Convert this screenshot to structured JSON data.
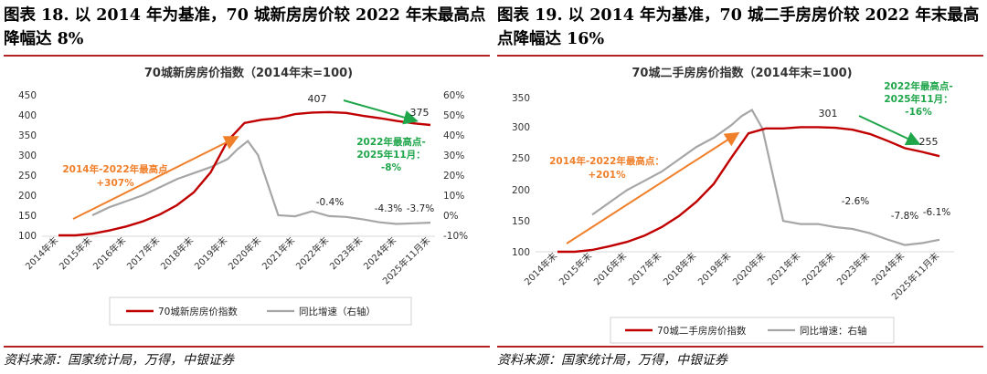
{
  "colors": {
    "accent_red": "#b22222",
    "index_line": "#c00000",
    "yoy_line": "#a6a6a6",
    "orange_note": "#f07f2a",
    "green_note": "#1fa64a"
  },
  "chart_data": [
    {
      "type": "line",
      "figure_title": "图表 18. 以 2014 年为基准，70 城新房房价较 2022 年末最高点降幅达 8%",
      "title": "70城新房房价指数（2014年末=100)",
      "categories": [
        "2014年末",
        "2015年末",
        "2016年末",
        "2017年末",
        "2018年末",
        "2019年末",
        "2020年末",
        "2021年末",
        "2022年末",
        "2023年末",
        "2024年末",
        "2025年11月末"
      ],
      "series": [
        {
          "name": "70城新房房价指数",
          "axis": "left",
          "color": "#c00000",
          "x": [
            0,
            0.5,
            1,
            1.5,
            2,
            2.5,
            3,
            3.5,
            4,
            4.5,
            5,
            5.5,
            6,
            6.5,
            7,
            7.5,
            8,
            8.5,
            9,
            9.5,
            10,
            10.5,
            11
          ],
          "values": [
            100,
            100,
            104,
            112,
            122,
            135,
            152,
            175,
            207,
            257,
            335,
            380,
            388,
            392,
            402,
            406,
            407,
            405,
            398,
            392,
            385,
            379,
            375
          ]
        },
        {
          "name": "同比增速（右轴）",
          "axis": "right",
          "color": "#a6a6a6",
          "x": [
            1,
            1.5,
            2,
            2.5,
            3,
            3.5,
            4,
            4.5,
            5,
            5.3,
            5.6,
            5.9,
            6.2,
            6.5,
            7,
            7.5,
            8,
            8.5,
            9,
            9.5,
            10,
            10.5,
            11
          ],
          "values": [
            0,
            4,
            7,
            10,
            14,
            18,
            21,
            24,
            28,
            33,
            37,
            30,
            15,
            0,
            -0.5,
            2,
            -0.4,
            -0.8,
            -2,
            -3.5,
            -4.3,
            -4.0,
            -3.7
          ]
        }
      ],
      "ylim": [
        100,
        450
      ],
      "yticks": [
        100,
        150,
        200,
        250,
        300,
        350,
        400,
        450
      ],
      "ylim_right": [
        -10,
        60
      ],
      "yticks_right": [
        "-10%",
        "0%",
        "10%",
        "20%",
        "30%",
        "40%",
        "50%",
        "60%"
      ],
      "annotations": {
        "peak_value": "407",
        "end_value": "375",
        "orange_line1": "2014年-2022年最高点",
        "orange_line2": "+307%",
        "green_line1": "2022年最高点-",
        "green_line2": "2025年11月：",
        "green_line3": "-8%",
        "yoy_label_1": "-0.4%",
        "yoy_label_2": "-4.3%",
        "yoy_label_3": "-3.7%"
      },
      "legend": [
        "70城新房房价指数",
        "同比增速（右轴）"
      ],
      "source": "资料来源：国家统计局，万得，中银证券"
    },
    {
      "type": "line",
      "figure_title": "图表 19. 以 2014 年为基准，70 城二手房房价较 2022 年末最高点降幅达 16%",
      "title": "70城二手房房价指数（2014年末=100)",
      "categories": [
        "2014年末",
        "2015年末",
        "2016年末",
        "2017年末",
        "2018年末",
        "2019年末",
        "2020年末",
        "2021年末",
        "2022年末",
        "2023年末",
        "2024年末",
        "2025年11月末"
      ],
      "series": [
        {
          "name": "70城二手房房价指数",
          "axis": "left",
          "color": "#c00000",
          "x": [
            0,
            0.5,
            1,
            1.5,
            2,
            2.5,
            3,
            3.5,
            4,
            4.5,
            5,
            5.5,
            6,
            6.5,
            7,
            7.5,
            8,
            8.5,
            9,
            9.5,
            10,
            10.5,
            11
          ],
          "values": [
            100,
            100,
            103,
            109,
            116,
            126,
            140,
            158,
            181,
            210,
            252,
            292,
            300,
            300,
            302,
            302,
            301,
            298,
            291,
            280,
            268,
            262,
            255
          ]
        },
        {
          "name": "同比增速：右轴",
          "axis": "right",
          "color": "#a6a6a6",
          "x": [
            1,
            1.5,
            2,
            2.5,
            3,
            3.5,
            4,
            4.5,
            5,
            5.3,
            5.6,
            5.9,
            6.2,
            6.5,
            7,
            7.5,
            8,
            8.5,
            9,
            9.5,
            10,
            10.5,
            11
          ],
          "values": [
            2,
            6,
            10,
            13,
            16,
            20,
            24,
            27,
            31,
            34,
            36,
            30,
            15,
            0,
            -1,
            -1,
            -2,
            -2.6,
            -4,
            -6,
            -7.8,
            -7.2,
            -6.1
          ]
        }
      ],
      "ylim": [
        100,
        350
      ],
      "yticks": [
        100,
        150,
        200,
        250,
        300,
        350
      ],
      "ylim_right": [
        -10,
        40
      ],
      "annotations": {
        "peak_value": "301",
        "end_value": "255",
        "orange_line1": "2014年-2022年最高点：",
        "orange_line2": "+201%",
        "green_line1": "2022年最高点-",
        "green_line2": "2025年11月：",
        "green_line3": "-16%",
        "yoy_label_1": "-2.6%",
        "yoy_label_2": "-7.8%",
        "yoy_label_3": "-6.1%"
      },
      "legend": [
        "70城二手房房价指数",
        "同比增速：右轴"
      ],
      "source": "资料来源：国家统计局，万得，中银证券"
    }
  ]
}
